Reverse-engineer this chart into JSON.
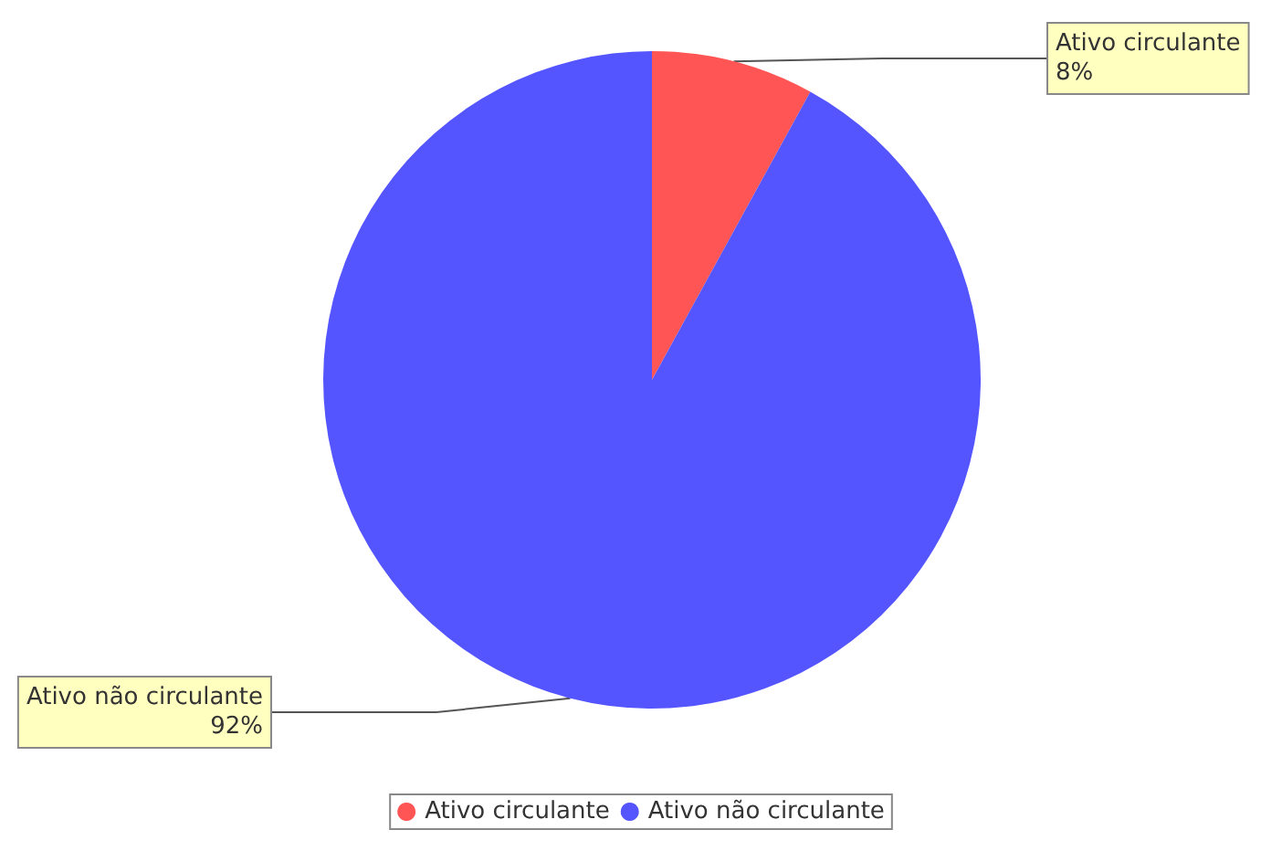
{
  "chart_data": {
    "type": "pie",
    "categories": [
      "Ativo circulante",
      "Ativo não circulante"
    ],
    "values": [
      8,
      92
    ],
    "value_labels": [
      "8%",
      "92%"
    ],
    "colors": [
      "#ff5555",
      "#5555ff"
    ],
    "legend": "bottom"
  }
}
